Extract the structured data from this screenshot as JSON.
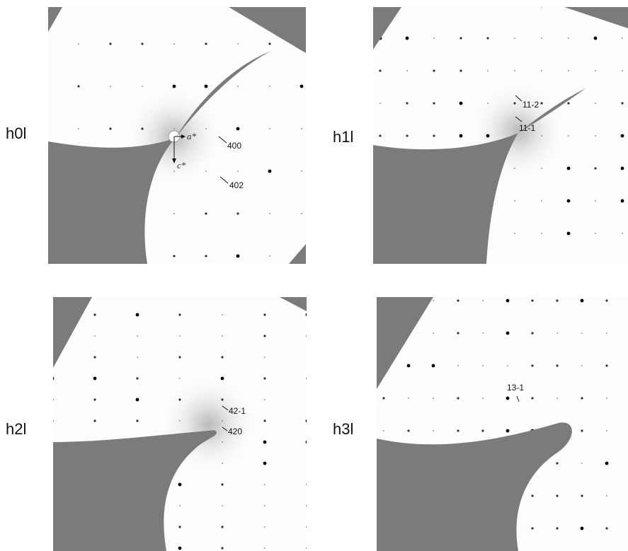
{
  "panels": [
    {
      "label": "h0l",
      "annotations": [
        "400",
        "402"
      ],
      "axes": [
        "a*",
        "c*"
      ]
    },
    {
      "label": "h1l",
      "annotations": [
        "11-2",
        "11-1"
      ]
    },
    {
      "label": "h2l",
      "annotations": [
        "42-1",
        "420"
      ]
    },
    {
      "label": "h3l",
      "annotations": [
        "13-1"
      ]
    }
  ]
}
